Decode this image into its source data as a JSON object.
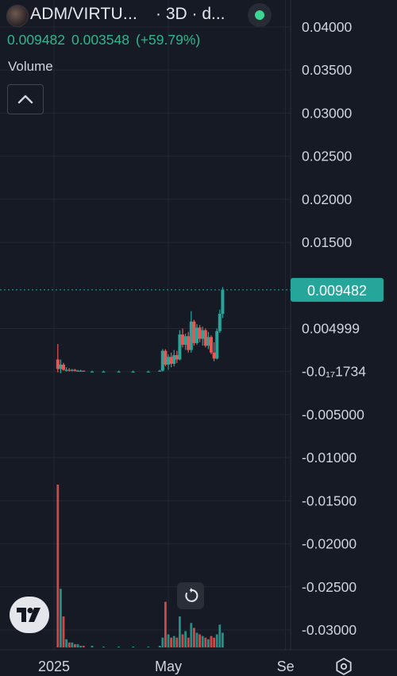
{
  "header": {
    "symbol": "ADM/VIRTU...",
    "interval": "· 3D · d...",
    "last_price": "0.009482",
    "change": "0.003548",
    "change_pct": "(+59.79%)",
    "status_color": "#3bd693"
  },
  "volume_label": "Volume",
  "icons": {
    "collapse": "chevron-up-icon",
    "logo": "tradingview-logo-icon",
    "reset": "reset-icon",
    "settings": "settings-icon",
    "avatar": "token-avatar-icon"
  },
  "colors": {
    "up": "#26a69a",
    "down": "#ef5350",
    "background": "#161a25",
    "price_tag": "#26a69a"
  },
  "chart_data": {
    "type": "candlestick",
    "price_axis": {
      "ticks": [
        0.04,
        0.035,
        0.03,
        0.025,
        0.02,
        0.015,
        0.005,
        0,
        -0.005,
        -0.01,
        -0.015,
        -0.02,
        -0.025,
        -0.03
      ],
      "tick_labels": [
        "0.04000",
        "0.03500",
        "0.03000",
        "0.02500",
        "0.02000",
        "0.01500",
        "0.004999",
        "-0.0₁₇1734",
        "-0.005000",
        "-0.01000",
        "-0.01500",
        "-0.02000",
        "-0.02500",
        "-0.03000"
      ],
      "last_price_value": 0.009482,
      "last_price_label": "0.009482"
    },
    "time_axis": {
      "labels": [
        "2025",
        "May",
        "Se"
      ],
      "label_dates": [
        "2025-01-01",
        "2025-05-01",
        "2025-09-01"
      ]
    },
    "series": [
      {
        "date": "2025-01-05",
        "open": 0.0014,
        "high": 0.0032,
        "low": -0.0001,
        "close": 0.0003,
        "volume": 1.0
      },
      {
        "date": "2025-01-08",
        "open": 0.0003,
        "high": 0.0014,
        "low": -0.0002,
        "close": 0.0008,
        "volume": 0.36
      },
      {
        "date": "2025-01-11",
        "open": 0.0008,
        "high": 0.001,
        "low": 0.0001,
        "close": 0.0002,
        "volume": 0.19
      },
      {
        "date": "2025-01-14",
        "open": 0.0002,
        "high": 0.0005,
        "low": 0.0,
        "close": 0.0002,
        "volume": 0.05
      },
      {
        "date": "2025-01-17",
        "open": 0.0002,
        "high": 0.0004,
        "low": 0.0,
        "close": 0.0001,
        "volume": 0.03
      },
      {
        "date": "2025-01-20",
        "open": 0.0001,
        "high": 0.0003,
        "low": 0.0,
        "close": 0.0002,
        "volume": 0.03
      },
      {
        "date": "2025-01-23",
        "open": 0.0002,
        "high": 0.0003,
        "low": 0.0,
        "close": 0.0001,
        "volume": 0.02
      },
      {
        "date": "2025-01-26",
        "open": 0.0001,
        "high": 0.0002,
        "low": 0.0,
        "close": 0.0001,
        "volume": 0.02
      },
      {
        "date": "2025-01-29",
        "open": 0.0001,
        "high": 0.0002,
        "low": 0.0,
        "close": 0.0001,
        "volume": 0.01
      },
      {
        "date": "2025-02-01",
        "open": 0.0001,
        "high": 0.0001,
        "low": 0.0,
        "close": 0.0,
        "volume": 0.01
      },
      {
        "date": "2025-02-10",
        "open": 0.0,
        "high": 0.0001,
        "low": 0.0,
        "close": 0.0,
        "volume": 0.01
      },
      {
        "date": "2025-02-22",
        "open": 0.0,
        "high": 0.0001,
        "low": 0.0,
        "close": 0.0,
        "volume": 0.005
      },
      {
        "date": "2025-03-10",
        "open": 0.0,
        "high": 0.0001,
        "low": 0.0,
        "close": 0.0,
        "volume": 0.005
      },
      {
        "date": "2025-03-25",
        "open": 0.0,
        "high": 0.0001,
        "low": 0.0,
        "close": 0.0,
        "volume": 0.005
      },
      {
        "date": "2025-04-10",
        "open": 0.0,
        "high": 0.0001,
        "low": 0.0,
        "close": 0.0,
        "volume": 0.005
      },
      {
        "date": "2025-04-22",
        "open": 0.0,
        "high": 0.0002,
        "low": 0.0,
        "close": 0.0001,
        "volume": 0.01
      },
      {
        "date": "2025-04-25",
        "open": 0.0001,
        "high": 0.0026,
        "low": 0.0,
        "close": 0.0024,
        "volume": 0.06
      },
      {
        "date": "2025-04-28",
        "open": 0.0024,
        "high": 0.0026,
        "low": 0.0006,
        "close": 0.0008,
        "volume": 0.28
      },
      {
        "date": "2025-05-01",
        "open": 0.0008,
        "high": 0.002,
        "low": 0.0002,
        "close": 0.0017,
        "volume": 0.08
      },
      {
        "date": "2025-05-04",
        "open": 0.0017,
        "high": 0.0022,
        "low": 0.0005,
        "close": 0.0009,
        "volume": 0.06
      },
      {
        "date": "2025-05-07",
        "open": 0.0009,
        "high": 0.0025,
        "low": 0.0006,
        "close": 0.0019,
        "volume": 0.07
      },
      {
        "date": "2025-05-10",
        "open": 0.0019,
        "high": 0.0024,
        "low": 0.001,
        "close": 0.0014,
        "volume": 0.06
      },
      {
        "date": "2025-05-13",
        "open": 0.0014,
        "high": 0.0048,
        "low": 0.0013,
        "close": 0.0043,
        "volume": 0.19
      },
      {
        "date": "2025-05-16",
        "open": 0.0043,
        "high": 0.005,
        "low": 0.0028,
        "close": 0.0031,
        "volume": 0.08
      },
      {
        "date": "2025-05-19",
        "open": 0.0031,
        "high": 0.0044,
        "low": 0.0025,
        "close": 0.0041,
        "volume": 0.1
      },
      {
        "date": "2025-05-22",
        "open": 0.0041,
        "high": 0.0046,
        "low": 0.0022,
        "close": 0.0025,
        "volume": 0.06
      },
      {
        "date": "2025-05-25",
        "open": 0.0025,
        "high": 0.007,
        "low": 0.0022,
        "close": 0.0058,
        "volume": 0.15
      },
      {
        "date": "2025-05-28",
        "open": 0.0058,
        "high": 0.006,
        "low": 0.003,
        "close": 0.0033,
        "volume": 0.12
      },
      {
        "date": "2025-05-31",
        "open": 0.0033,
        "high": 0.0055,
        "low": 0.0031,
        "close": 0.0051,
        "volume": 0.09
      },
      {
        "date": "2025-06-03",
        "open": 0.0051,
        "high": 0.0054,
        "low": 0.0034,
        "close": 0.0038,
        "volume": 0.08
      },
      {
        "date": "2025-06-06",
        "open": 0.0038,
        "high": 0.0052,
        "low": 0.003,
        "close": 0.0048,
        "volume": 0.07
      },
      {
        "date": "2025-06-09",
        "open": 0.0048,
        "high": 0.005,
        "low": 0.0028,
        "close": 0.003,
        "volume": 0.06
      },
      {
        "date": "2025-06-12",
        "open": 0.003,
        "high": 0.0046,
        "low": 0.0026,
        "close": 0.004,
        "volume": 0.05
      },
      {
        "date": "2025-06-15",
        "open": 0.004,
        "high": 0.0042,
        "low": 0.002,
        "close": 0.0022,
        "volume": 0.07
      },
      {
        "date": "2025-06-18",
        "open": 0.0022,
        "high": 0.0034,
        "low": 0.0012,
        "close": 0.0015,
        "volume": 0.06
      },
      {
        "date": "2025-06-21",
        "open": 0.0015,
        "high": 0.005,
        "low": 0.0014,
        "close": 0.0047,
        "volume": 0.08
      },
      {
        "date": "2025-06-24",
        "open": 0.0047,
        "high": 0.0072,
        "low": 0.0045,
        "close": 0.0067,
        "volume": 0.14
      },
      {
        "date": "2025-06-27",
        "open": 0.0067,
        "high": 0.0098,
        "low": 0.0062,
        "close": 0.0095,
        "volume": 0.09
      }
    ]
  }
}
